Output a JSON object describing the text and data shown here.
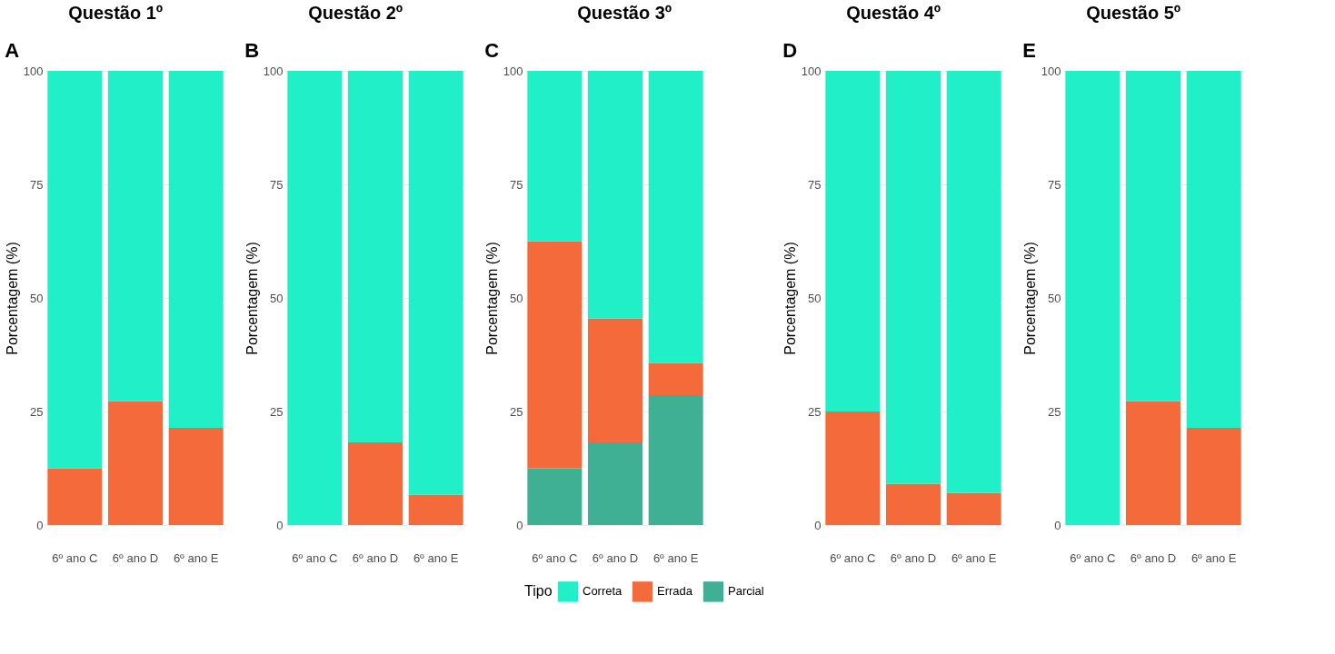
{
  "chart_data": [
    {
      "type": "bar",
      "title": "Questão 1º",
      "subtitle": "A",
      "ylabel": "Porcentagem (%)",
      "categories": [
        "6º ano C",
        "6º ano D",
        "6º ano E"
      ],
      "stacked": true,
      "ylim": [
        0,
        100
      ],
      "yticks": [
        0,
        25,
        50,
        75,
        100
      ],
      "grid": "y",
      "series": [
        {
          "color": "#f46a3a",
          "values": [
            12.5,
            27.3,
            21.4
          ]
        },
        {
          "color": "#20efc8",
          "values": [
            87.5,
            72.7,
            78.6
          ]
        }
      ]
    },
    {
      "type": "bar",
      "title": "Questão 2º",
      "subtitle": "B",
      "ylabel": "Porcentagem (%)",
      "categories": [
        "6º ano C",
        "6º ano D",
        "6º ano E"
      ],
      "stacked": true,
      "ylim": [
        0,
        100
      ],
      "yticks": [
        0,
        25,
        50,
        75,
        100
      ],
      "grid": "y",
      "series": [
        {
          "color": "#f46a3a",
          "values": [
            0,
            18.2,
            6.7
          ]
        },
        {
          "color": "#20efc8",
          "values": [
            100,
            81.8,
            93.3
          ]
        }
      ]
    },
    {
      "type": "bar",
      "title": "Questão 3º",
      "subtitle": "C",
      "ylabel": "Porcentagem (%)",
      "categories": [
        "6º ano C",
        "6º ano D",
        "6º ano E"
      ],
      "stacked": true,
      "ylim": [
        0,
        100
      ],
      "yticks": [
        0,
        25,
        50,
        75,
        100
      ],
      "grid": "y",
      "legend": "bottom",
      "legend_title": "Tipo",
      "series": [
        {
          "name": "Parcial",
          "color": "#40b095",
          "values": [
            12.5,
            18.2,
            28.6
          ]
        },
        {
          "name": "Errada",
          "color": "#f46a3a",
          "values": [
            50,
            27.3,
            7.1
          ]
        },
        {
          "name": "Correta",
          "color": "#20efc8",
          "values": [
            37.5,
            54.5,
            64.3
          ]
        }
      ]
    },
    {
      "type": "bar",
      "title": "Questão 4º",
      "subtitle": "D",
      "ylabel": "Porcentagem (%)",
      "categories": [
        "6º ano C",
        "6º ano D",
        "6º ano E"
      ],
      "stacked": true,
      "ylim": [
        0,
        100
      ],
      "yticks": [
        0,
        25,
        50,
        75,
        100
      ],
      "grid": "y",
      "series": [
        {
          "color": "#f46a3a",
          "values": [
            25,
            9.1,
            7.1
          ]
        },
        {
          "color": "#20efc8",
          "values": [
            75,
            90.9,
            92.9
          ]
        }
      ]
    },
    {
      "type": "bar",
      "title": "Questão 5º",
      "subtitle": "E",
      "ylabel": "Porcentagem (%)",
      "categories": [
        "6º ano C",
        "6º ano D",
        "6º ano E"
      ],
      "stacked": true,
      "ylim": [
        0,
        100
      ],
      "yticks": [
        0,
        25,
        50,
        75,
        100
      ],
      "grid": "y",
      "series": [
        {
          "color": "#f46a3a",
          "values": [
            0,
            27.3,
            21.4
          ]
        },
        {
          "color": "#20efc8",
          "values": [
            100,
            72.7,
            78.6
          ]
        }
      ]
    }
  ]
}
